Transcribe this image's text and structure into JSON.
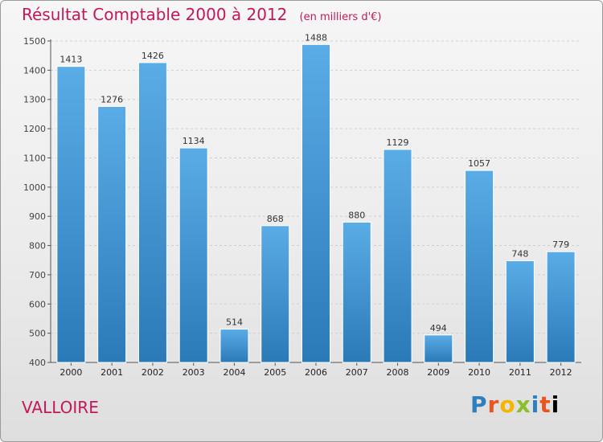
{
  "chart_data": {
    "type": "bar",
    "title": "Résultat Comptable 2000 à 2012",
    "unit_note": "(en milliers d'€)",
    "categories": [
      "2000",
      "2001",
      "2002",
      "2003",
      "2004",
      "2005",
      "2006",
      "2007",
      "2008",
      "2009",
      "2010",
      "2011",
      "2012"
    ],
    "values": [
      1413,
      1276,
      1426,
      1134,
      514,
      868,
      1488,
      880,
      1129,
      494,
      1057,
      748,
      779
    ],
    "ylim": [
      400,
      1500
    ],
    "yticks": [
      400,
      500,
      600,
      700,
      800,
      900,
      1000,
      1100,
      1200,
      1300,
      1400,
      1500
    ],
    "xlabel": "",
    "ylabel": "",
    "grid": true,
    "bar_color_top": "#5aace6",
    "bar_color_bottom": "#2a7ab8"
  },
  "commune": "VALLOIRE",
  "brand": [
    "P",
    "r",
    "o",
    "x",
    "i",
    "t",
    "i"
  ]
}
